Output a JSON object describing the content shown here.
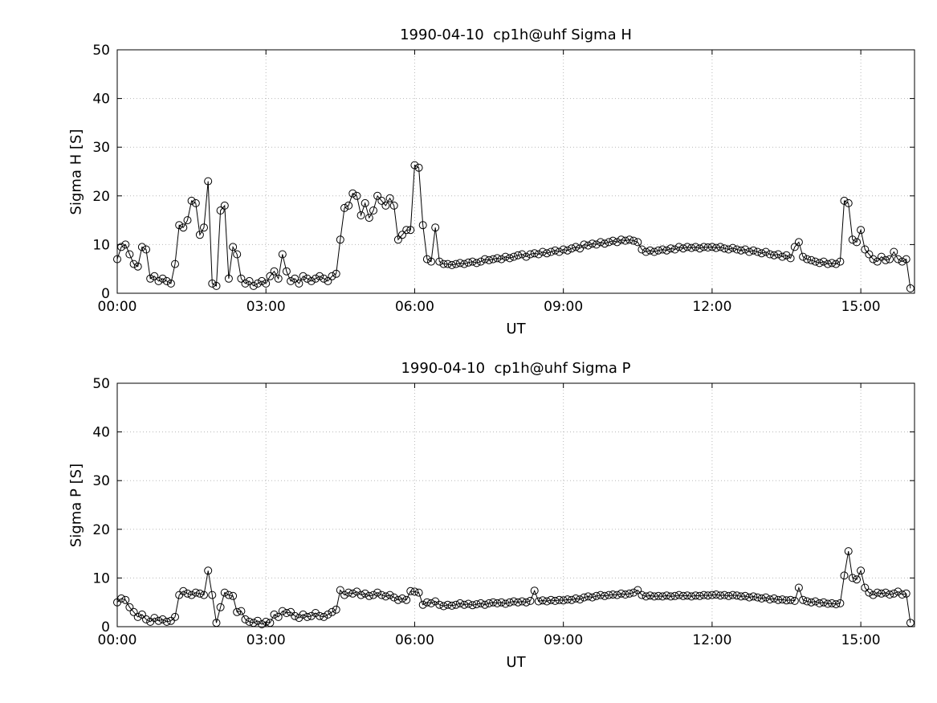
{
  "figure": {
    "background_color": "#ffffff",
    "line_color": "#000000",
    "grid_color": "#b8b8b8",
    "axis_color": "#000000",
    "text_color": "#000000"
  },
  "chart_data": [
    {
      "type": "line",
      "title": "1990-04-10  cp1h@uhf Sigma H",
      "xlabel": "UT",
      "ylabel": "Sigma H [S]",
      "marker": "open-circle",
      "grid": true,
      "legend": "none",
      "ylim": [
        0,
        50
      ],
      "yticks": [
        0,
        10,
        20,
        30,
        40,
        50
      ],
      "xlim_minutes": [
        0,
        965
      ],
      "xtick_minutes": [
        0,
        180,
        360,
        540,
        720,
        900
      ],
      "xtick_labels": [
        "00:00",
        "03:00",
        "06:00",
        "09:00",
        "12:00",
        "15:00"
      ],
      "x": {
        "unit": "minutes since 00:00 UT",
        "start_minutes": 0,
        "step_minutes": 5,
        "count": 193
      },
      "values": [
        7,
        9.5,
        10,
        8,
        6,
        5.5,
        9.5,
        9,
        3,
        3.5,
        2.5,
        3,
        2.5,
        2,
        6,
        14,
        13.5,
        15,
        19,
        18.5,
        12,
        13.5,
        23,
        2,
        1.5,
        17,
        18,
        3,
        9.5,
        8,
        3,
        2,
        2.5,
        1.5,
        2,
        2.5,
        2,
        3.5,
        4.5,
        3,
        8,
        4.5,
        2.5,
        3,
        2,
        3.5,
        3,
        2.5,
        3,
        3.5,
        3,
        2.5,
        3.5,
        4,
        11,
        17.5,
        18,
        20.5,
        20,
        16,
        18.5,
        15.5,
        17,
        20,
        19,
        18,
        19.5,
        18,
        11,
        12,
        13,
        13,
        26.3,
        25.8,
        14,
        7,
        6.5,
        13.5,
        6.5,
        6,
        6,
        5.8,
        6,
        6.2,
        6,
        6.3,
        6.5,
        6.2,
        6.5,
        7,
        6.8,
        7,
        7.2,
        7,
        7.5,
        7.2,
        7.5,
        7.8,
        8,
        7.5,
        8,
        8.2,
        8,
        8.5,
        8.2,
        8.5,
        8.8,
        8.5,
        9,
        8.8,
        9.2,
        9.5,
        9.2,
        10,
        9.8,
        10.2,
        10,
        10.5,
        10.2,
        10.5,
        10.8,
        10.5,
        11,
        10.8,
        11,
        10.8,
        10.5,
        9,
        8.5,
        8.8,
        8.5,
        8.8,
        9,
        8.8,
        9.2,
        9,
        9.5,
        9.2,
        9.5,
        9.3,
        9.5,
        9.2,
        9.5,
        9.4,
        9.5,
        9.3,
        9.5,
        9.2,
        9,
        9.3,
        9,
        8.8,
        9,
        8.5,
        8.8,
        8.5,
        8.2,
        8.5,
        8,
        7.8,
        8,
        7.5,
        7.8,
        7.2,
        9.5,
        10.5,
        7.5,
        7,
        6.8,
        6.5,
        6.2,
        6.5,
        6,
        6.2,
        6,
        6.5,
        19,
        18.5,
        11,
        10.5,
        13,
        9,
        8,
        7,
        6.5,
        7.5,
        6.8,
        7,
        8.5,
        7,
        6.5,
        7,
        1
      ]
    },
    {
      "type": "line",
      "title": "1990-04-10  cp1h@uhf Sigma P",
      "xlabel": "UT",
      "ylabel": "Sigma P [S]",
      "marker": "open-circle",
      "grid": true,
      "legend": "none",
      "ylim": [
        0,
        50
      ],
      "yticks": [
        0,
        10,
        20,
        30,
        40,
        50
      ],
      "xlim_minutes": [
        0,
        965
      ],
      "xtick_minutes": [
        0,
        180,
        360,
        540,
        720,
        900
      ],
      "xtick_labels": [
        "00:00",
        "03:00",
        "06:00",
        "09:00",
        "12:00",
        "15:00"
      ],
      "x": {
        "unit": "minutes since 00:00 UT",
        "start_minutes": 0,
        "step_minutes": 5,
        "count": 193
      },
      "values": [
        5,
        5.8,
        5.5,
        4,
        3,
        2,
        2.5,
        1.5,
        1,
        1.8,
        1.2,
        1.5,
        1,
        1.2,
        2,
        6.5,
        7.3,
        6.8,
        6.5,
        7,
        6.8,
        6.5,
        11.5,
        6.5,
        0.8,
        4,
        7,
        6.5,
        6.3,
        3,
        3.2,
        1.5,
        1,
        0.8,
        1.2,
        0.5,
        1,
        0.8,
        2.5,
        2,
        3.2,
        2.8,
        3,
        2.2,
        1.8,
        2.5,
        2,
        2.2,
        2.8,
        2.2,
        2,
        2.5,
        3,
        3.5,
        7.5,
        6.5,
        7,
        6.8,
        7.2,
        6.5,
        6.8,
        6.3,
        6.5,
        7,
        6.5,
        6.2,
        6.5,
        6,
        5.5,
        5.8,
        5.5,
        7.3,
        7.2,
        7,
        4.5,
        5,
        4.8,
        5.2,
        4.5,
        4.2,
        4.5,
        4.3,
        4.5,
        4.8,
        4.5,
        4.7,
        4.4,
        4.6,
        4.8,
        4.5,
        4.8,
        5,
        4.8,
        5,
        4.7,
        5,
        5.2,
        5,
        5.2,
        5,
        5.3,
        7.4,
        5.2,
        5.4,
        5.2,
        5.5,
        5.3,
        5.5,
        5.4,
        5.6,
        5.5,
        5.8,
        5.6,
        6,
        6.2,
        6,
        6.3,
        6.5,
        6.3,
        6.5,
        6.6,
        6.5,
        6.8,
        6.6,
        6.8,
        7,
        7.5,
        6.5,
        6.2,
        6.4,
        6.2,
        6.3,
        6.2,
        6.4,
        6.2,
        6.3,
        6.5,
        6.3,
        6.4,
        6.2,
        6.4,
        6.3,
        6.5,
        6.4,
        6.5,
        6.6,
        6.4,
        6.5,
        6.3,
        6.5,
        6.4,
        6.2,
        6.3,
        6,
        6.2,
        6,
        5.8,
        6,
        5.6,
        5.8,
        5.5,
        5.6,
        5.4,
        5.5,
        5.3,
        8,
        5.5,
        5.2,
        5,
        5.2,
        4.8,
        5,
        4.7,
        4.8,
        4.6,
        4.8,
        10.5,
        15.5,
        10,
        9.7,
        11.5,
        8,
        7,
        6.5,
        7,
        6.8,
        7,
        6.6,
        6.8,
        7.2,
        6.6,
        6.8,
        0.8
      ]
    }
  ]
}
